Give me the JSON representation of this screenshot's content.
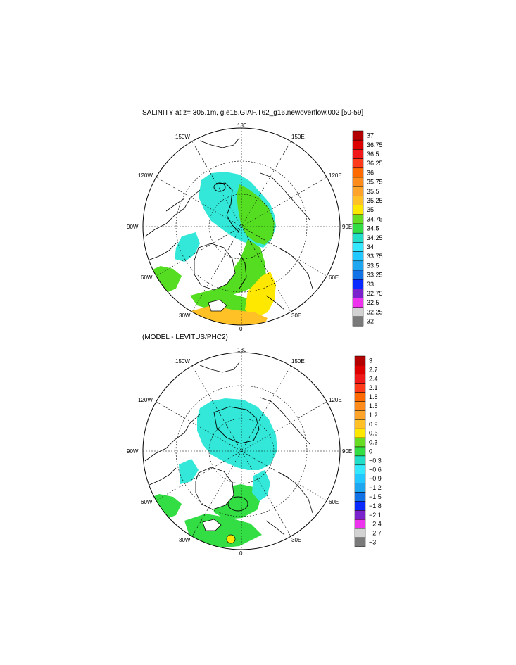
{
  "panels": [
    {
      "title": "SALINITY at z= 305.1m, g.e15.GIAF.T62_g16.newoverflow.002 [50-59]",
      "lon_labels": [
        "180",
        "150W",
        "150E",
        "120W",
        "120E",
        "90W",
        "90E",
        "60W",
        "60E",
        "30W",
        "30E",
        "0"
      ],
      "colorbar": {
        "labels": [
          "37",
          "36.75",
          "36.5",
          "36.25",
          "36",
          "35.75",
          "35.5",
          "35.25",
          "35",
          "34.75",
          "34.5",
          "34.25",
          "34",
          "33.75",
          "33.5",
          "33.25",
          "33",
          "32.75",
          "32.5",
          "32.25",
          "32"
        ],
        "colors": [
          "#b30000",
          "#dd0000",
          "#f01818",
          "#ff3a1a",
          "#ff6a00",
          "#ff8c1a",
          "#ffa42b",
          "#ffc125",
          "#ffe800",
          "#66dd22",
          "#33dd44",
          "#22ddc8",
          "#33e8ff",
          "#22c8ff",
          "#1ea6f0",
          "#1173e6",
          "#0a2aff",
          "#7a22cc",
          "#ee33ee",
          "#d2d2d2",
          "#7a7a7a"
        ]
      }
    },
    {
      "title": "(MODEL - LEVITUS/PHC2)",
      "lon_labels": [
        "180",
        "150W",
        "150E",
        "120W",
        "120E",
        "90W",
        "90E",
        "60W",
        "60E",
        "30W",
        "30E",
        "0"
      ],
      "colorbar": {
        "labels": [
          "3",
          "2.7",
          "2.4",
          "2.1",
          "1.8",
          "1.5",
          "1.2",
          "0.9",
          "0.6",
          "0.3",
          "0",
          "−0.3",
          "−0.6",
          "−0.9",
          "−1.2",
          "−1.5",
          "−1.8",
          "−2.1",
          "−2.4",
          "−2.7",
          "−3"
        ],
        "colors": [
          "#b30000",
          "#dd0000",
          "#f01818",
          "#ff3a1a",
          "#ff6a00",
          "#ff8c1a",
          "#ffa42b",
          "#ffc125",
          "#ffe800",
          "#66dd22",
          "#33dd44",
          "#22ddc8",
          "#33e8ff",
          "#22c8ff",
          "#1ea6f0",
          "#1173e6",
          "#0a2aff",
          "#7a22cc",
          "#ee33ee",
          "#d2d2d2",
          "#7a7a7a"
        ]
      }
    }
  ]
}
